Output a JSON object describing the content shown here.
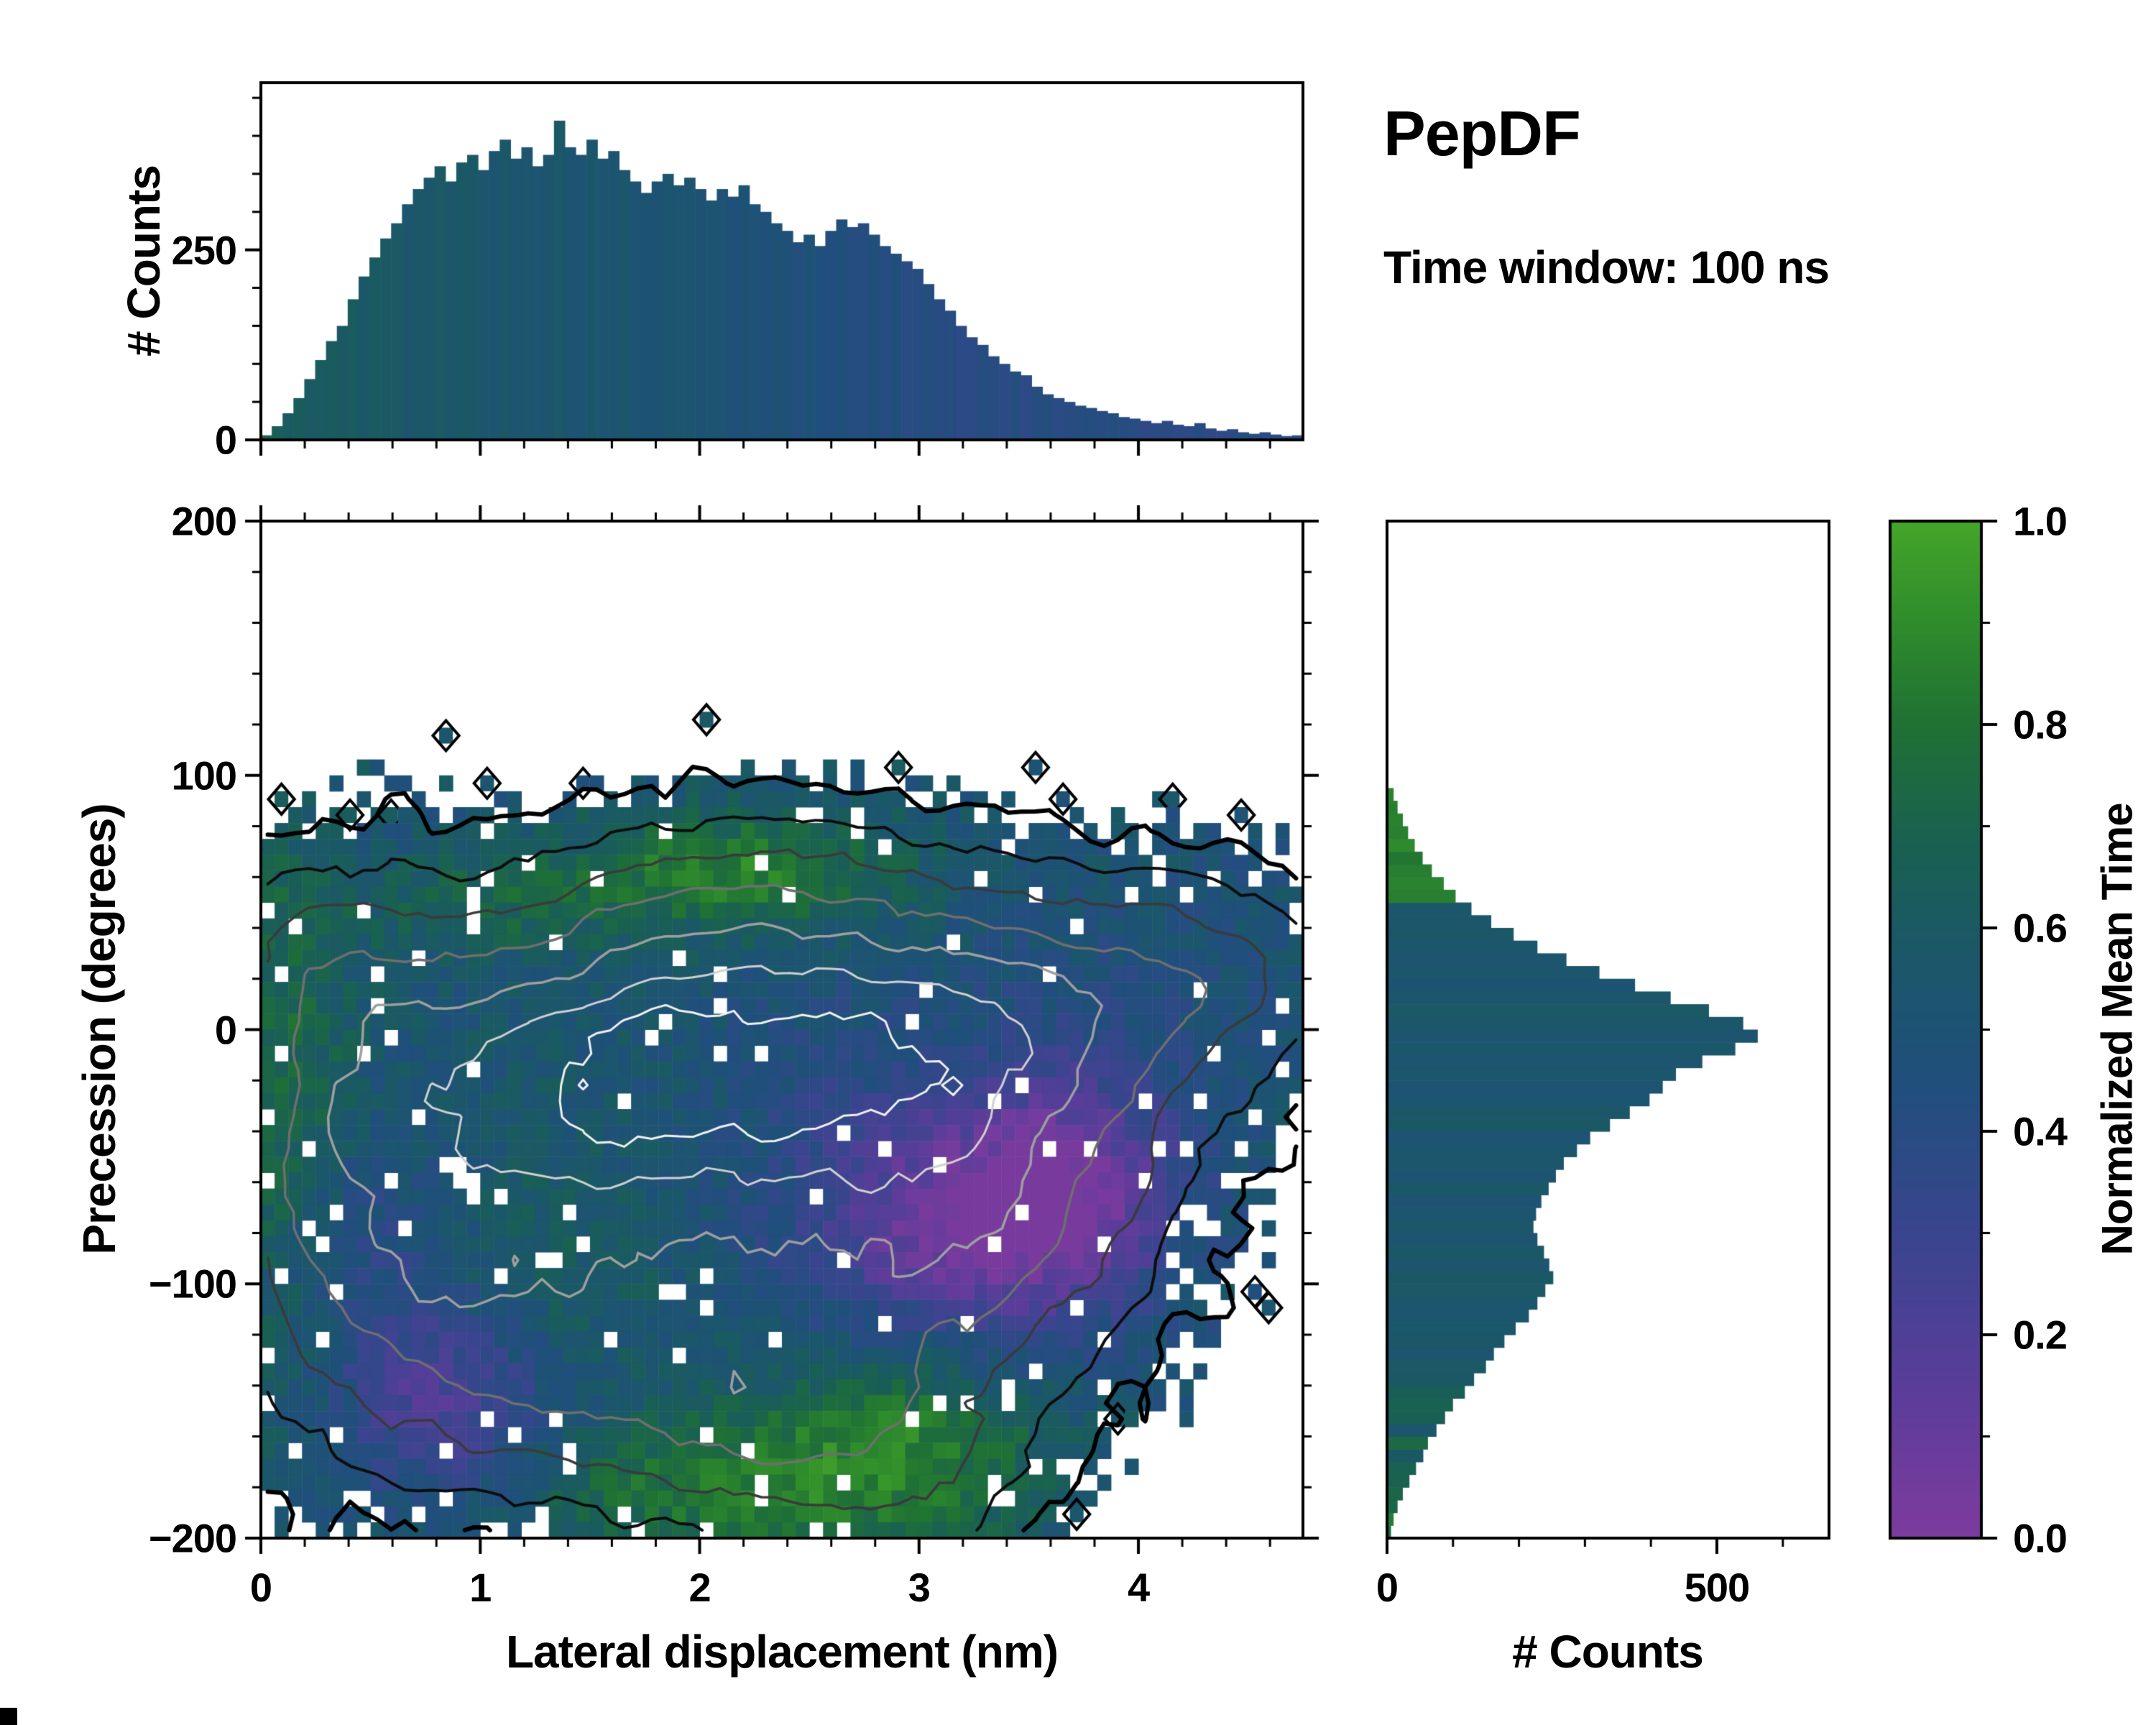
{
  "title": "PepDF",
  "subtitle": "Time window: 100 ns",
  "colors": {
    "frame": "#000000",
    "background": "#ffffff"
  },
  "colormap": {
    "stops": [
      [
        0.0,
        "#7D3B9E"
      ],
      [
        0.15,
        "#5A3D99"
      ],
      [
        0.3,
        "#39458E"
      ],
      [
        0.45,
        "#204F7C"
      ],
      [
        0.57,
        "#1B5769"
      ],
      [
        0.68,
        "#196052"
      ],
      [
        0.8,
        "#1F7134"
      ],
      [
        0.9,
        "#2F8C2B"
      ],
      [
        1.0,
        "#44A52A"
      ]
    ]
  },
  "colorbar": {
    "label": "Normalized Mean Time",
    "ticks": [
      {
        "label": "0.0",
        "value": 0.0
      },
      {
        "label": "0.2",
        "value": 0.2
      },
      {
        "label": "0.4",
        "value": 0.4
      },
      {
        "label": "0.6",
        "value": 0.6
      },
      {
        "label": "0.8",
        "value": 0.8
      },
      {
        "label": "1.0",
        "value": 1.0
      }
    ],
    "minor_step": 0.1,
    "range": [
      0.0,
      1.0
    ]
  },
  "chart_data": [
    {
      "id": "top_histogram",
      "type": "bar",
      "orientation": "vertical",
      "ylabel": "# Counts",
      "xlim": [
        0,
        4.75
      ],
      "ylim": [
        0,
        470
      ],
      "y_ticks": [
        {
          "label": "0",
          "value": 0
        },
        {
          "label": "250",
          "value": 250
        }
      ],
      "y_minor_step": 50,
      "x_minor_step": 0.2,
      "bins": {
        "start": 0,
        "width": 0.0495
      },
      "counts": [
        6,
        18,
        35,
        55,
        80,
        105,
        130,
        150,
        185,
        215,
        240,
        265,
        285,
        310,
        330,
        345,
        360,
        340,
        365,
        375,
        355,
        380,
        395,
        370,
        385,
        360,
        375,
        420,
        385,
        375,
        395,
        370,
        380,
        355,
        340,
        325,
        340,
        350,
        335,
        345,
        330,
        315,
        330,
        320,
        335,
        310,
        300,
        285,
        275,
        260,
        270,
        255,
        275,
        290,
        280,
        285,
        270,
        255,
        245,
        235,
        225,
        205,
        185,
        170,
        150,
        135,
        125,
        110,
        100,
        90,
        85,
        70,
        60,
        55,
        50,
        45,
        42,
        38,
        35,
        30,
        28,
        25,
        22,
        25,
        20,
        18,
        22,
        15,
        12,
        14,
        10,
        8,
        10,
        7,
        5,
        6
      ],
      "color_value_anchors": [
        [
          0,
          0.64
        ],
        [
          0.6,
          0.58
        ],
        [
          1.6,
          0.53
        ],
        [
          2.3,
          0.48
        ],
        [
          2.9,
          0.42
        ],
        [
          3.4,
          0.4
        ],
        [
          4.75,
          0.39
        ]
      ]
    },
    {
      "id": "joint_density_heatmap",
      "type": "heatmap",
      "xlabel": "Lateral displacement (nm)",
      "ylabel": "Precession (degrees)",
      "colorbar_label": "Normalized Mean Time",
      "xlim": [
        0,
        4.75
      ],
      "ylim": [
        -200,
        200
      ],
      "x_ticks": [
        {
          "label": "0",
          "value": 0
        },
        {
          "label": "1",
          "value": 1
        },
        {
          "label": "2",
          "value": 2
        },
        {
          "label": "3",
          "value": 3
        },
        {
          "label": "4",
          "value": 4
        }
      ],
      "y_ticks": [
        {
          "label": "200",
          "value": 200
        },
        {
          "label": "100",
          "value": 100
        },
        {
          "label": "0",
          "value": 0
        },
        {
          "label": "−100",
          "value": -100
        },
        {
          "label": "−200",
          "value": -200
        }
      ],
      "x_minor_step": 0.2,
      "y_minor_step": 20,
      "grid": {
        "ncols": 76,
        "nrows": 64
      },
      "seed": 11,
      "threshold": 0.07,
      "density_blobs": [
        {
          "cx": 1.3,
          "cy": -15,
          "sx": 0.8,
          "sy": 42,
          "a": 1.0
        },
        {
          "cx": 2.3,
          "cy": -5,
          "sx": 0.8,
          "sy": 40,
          "a": 0.95
        },
        {
          "cx": 1.1,
          "cy": -100,
          "sx": 0.7,
          "sy": 45,
          "a": 0.75
        },
        {
          "cx": 2.6,
          "cy": -65,
          "sx": 0.8,
          "sy": 48,
          "a": 0.65
        },
        {
          "cx": 3.25,
          "cy": 5,
          "sx": 0.6,
          "sy": 35,
          "a": 0.55
        },
        {
          "cx": 1.9,
          "cy": -150,
          "sx": 0.9,
          "sy": 32,
          "a": 0.5
        },
        {
          "cx": 0.4,
          "cy": -50,
          "sx": 0.45,
          "sy": 70,
          "a": 0.6
        },
        {
          "cx": 3.9,
          "cy": 15,
          "sx": 0.6,
          "sy": 32,
          "a": 0.45
        },
        {
          "cx": 2.5,
          "cy": -150,
          "sx": 0.6,
          "sy": 35,
          "a": 0.4
        },
        {
          "cx": 3.2,
          "cy": -85,
          "sx": 0.55,
          "sy": 40,
          "a": 0.4
        },
        {
          "cx": 4.4,
          "cy": 25,
          "sx": 0.4,
          "sy": 28,
          "a": 0.38
        },
        {
          "cx": 2.2,
          "cy": 55,
          "sx": 0.7,
          "sy": 25,
          "a": 0.45
        },
        {
          "cx": 2.9,
          "cy": -180,
          "sx": 0.45,
          "sy": 20,
          "a": 0.3
        },
        {
          "cx": 0.25,
          "cy": 30,
          "sx": 0.3,
          "sy": 25,
          "a": 0.3
        },
        {
          "cx": 3.6,
          "cy": -55,
          "sx": 0.5,
          "sy": 45,
          "a": 0.35
        }
      ],
      "value_base": 0.52,
      "value_blobs": [
        {
          "cx": 2.15,
          "cy": 62,
          "sx": 0.55,
          "sy": 17,
          "dv": 0.34
        },
        {
          "cx": 1.0,
          "cy": 48,
          "sx": 0.4,
          "sy": 14,
          "dv": 0.16
        },
        {
          "cx": 0.1,
          "cy": -20,
          "sx": 0.22,
          "sy": 85,
          "dv": 0.22
        },
        {
          "cx": 2.2,
          "cy": -180,
          "sx": 0.8,
          "sy": 22,
          "dv": 0.3
        },
        {
          "cx": 3.0,
          "cy": -150,
          "sx": 0.45,
          "sy": 28,
          "dv": 0.28
        },
        {
          "cx": 1.35,
          "cy": -95,
          "sx": 0.4,
          "sy": 30,
          "dv": 0.1
        },
        {
          "cx": 1.7,
          "cy": -35,
          "sx": 0.6,
          "sy": 40,
          "dv": 0.06
        },
        {
          "cx": 3.2,
          "cy": -85,
          "sx": 0.5,
          "sy": 38,
          "dv": -0.4
        },
        {
          "cx": 3.7,
          "cy": -60,
          "sx": 0.35,
          "sy": 30,
          "dv": -0.35
        },
        {
          "cx": 0.85,
          "cy": -150,
          "sx": 0.35,
          "sy": 28,
          "dv": -0.33
        },
        {
          "cx": 0.45,
          "cy": -85,
          "sx": 0.3,
          "sy": 30,
          "dv": -0.16
        },
        {
          "cx": 2.6,
          "cy": -35,
          "sx": 0.7,
          "sy": 45,
          "dv": -0.1
        },
        {
          "cx": 4.1,
          "cy": 10,
          "sx": 0.5,
          "sy": 35,
          "dv": -0.06
        }
      ],
      "contours": [
        {
          "level": 0.085,
          "color": "#000000",
          "width": 6
        },
        {
          "level": 0.19,
          "color": "#0d0d0d",
          "width": 4
        },
        {
          "level": 0.33,
          "color": "#3a3a3a",
          "width": 3.5
        },
        {
          "level": 0.48,
          "color": "#6f6f6f",
          "width": 3.5
        },
        {
          "level": 0.63,
          "color": "#9f9f9f",
          "width": 3.5
        },
        {
          "level": 0.78,
          "color": "#d0d0d0",
          "width": 3
        },
        {
          "level": 0.9,
          "color": "#f0f0f0",
          "width": 3
        }
      ]
    },
    {
      "id": "right_histogram",
      "type": "bar",
      "orientation": "horizontal",
      "xlabel": "# Counts",
      "xlim": [
        0,
        670
      ],
      "ylim": [
        -200,
        200
      ],
      "x_ticks": [
        {
          "label": "0",
          "value": 0
        },
        {
          "label": "500",
          "value": 500
        }
      ],
      "x_minor_step": 100,
      "bins": {
        "start": -200,
        "width": 5
      },
      "counts": [
        6,
        10,
        16,
        24,
        34,
        44,
        55,
        62,
        75,
        88,
        100,
        118,
        132,
        150,
        162,
        178,
        195,
        215,
        228,
        240,
        252,
        246,
        238,
        228,
        222,
        226,
        234,
        245,
        256,
        268,
        288,
        308,
        338,
        368,
        398,
        418,
        438,
        478,
        528,
        562,
        540,
        488,
        430,
        376,
        322,
        272,
        228,
        192,
        158,
        128,
        104,
        86,
        68,
        54,
        42,
        32,
        24,
        16,
        10
      ],
      "value_zones": [
        {
          "min": 48,
          "max": 200,
          "v": 0.85,
          "jitter": 0.05
        },
        {
          "min": -135,
          "max": 48,
          "v": 0.55,
          "jitter": 0.05
        },
        {
          "min": -185,
          "max": -135,
          "v": 0.64,
          "jitter": 0.12
        },
        {
          "min": -200,
          "max": -185,
          "v": 0.78,
          "jitter": 0.08
        }
      ]
    }
  ]
}
